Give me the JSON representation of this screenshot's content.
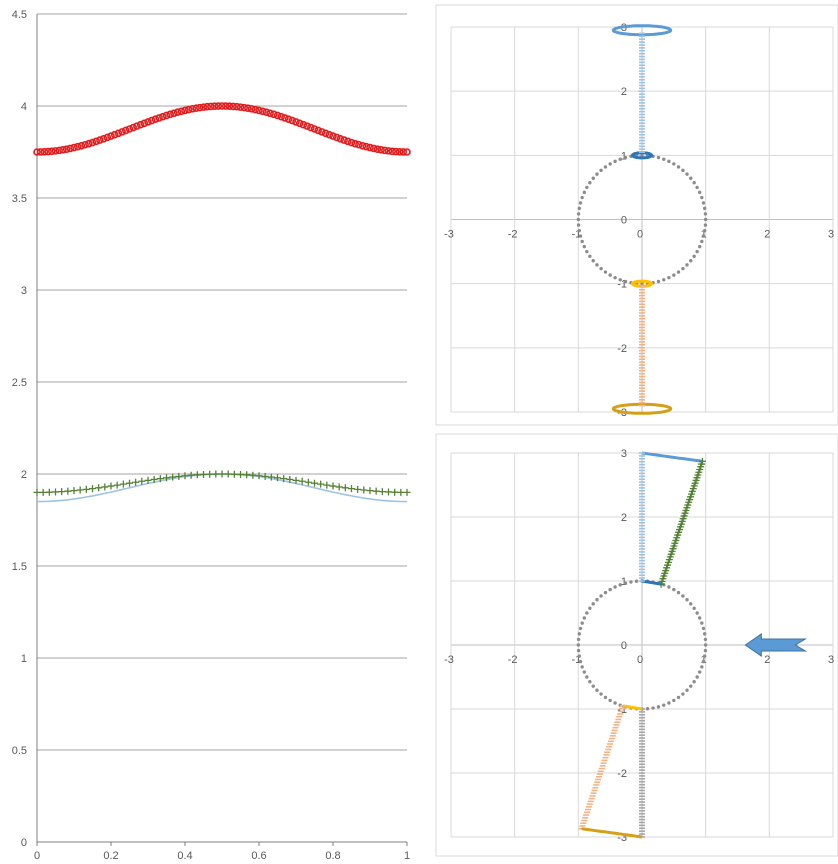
{
  "colors": {
    "red": "#e31a1c",
    "blue": "#5b9bd5",
    "blue_dark": "#2e75b6",
    "light_blue": "#9dc3e6",
    "green": "#548235",
    "gray": "#8c8c8c",
    "gold": "#ffc000",
    "gold_dark": "#d4a017",
    "salmon": "#f4b183",
    "grid": "#d9d9d9",
    "grid_dark": "#a6a6a6"
  },
  "chart_data": [
    {
      "id": "left",
      "type": "scatter",
      "xlim": [
        0,
        1
      ],
      "ylim": [
        0,
        4.5
      ],
      "x_ticks": [
        "0",
        "0.2",
        "0.4",
        "0.6",
        "0.8",
        "1"
      ],
      "y_ticks": [
        "0",
        "0.5",
        "1",
        "1.5",
        "2",
        "2.5",
        "3",
        "3.5",
        "4",
        "4.5"
      ],
      "grid": "horizontal",
      "legend": "none",
      "series": [
        {
          "marker": "circle",
          "color": "red",
          "shape": "cosine",
          "y_min": 3.75,
          "y_max": 4.0
        },
        {
          "marker": "line",
          "color": "light_blue",
          "shape": "cosine",
          "y_min": 1.85,
          "y_max": 2.0
        },
        {
          "marker": "plus",
          "color": "green",
          "shape": "cosine",
          "y_min": 1.9,
          "y_max": 2.0
        }
      ]
    },
    {
      "id": "top-right",
      "type": "scatter",
      "xlim": [
        -3,
        3
      ],
      "ylim": [
        -3,
        3
      ],
      "x_ticks": [
        "-3",
        "-2",
        "-1",
        "0",
        "1",
        "2",
        "3"
      ],
      "y_ticks": [
        "-3",
        "-2",
        "-1",
        "0",
        "1",
        "2",
        "3"
      ],
      "grid": "both",
      "legend": "none",
      "series": [
        {
          "marker": "dot",
          "color": "gray",
          "shape": "circle",
          "center": [
            0,
            0
          ],
          "r": 1
        },
        {
          "marker": "ring",
          "color": "blue",
          "shape": "ellipse",
          "center": [
            0,
            2.95
          ],
          "rx": 0.45,
          "ry": 0.07
        },
        {
          "marker": "ring",
          "color": "blue_dark",
          "shape": "ellipse",
          "center": [
            0,
            1.0
          ],
          "rx": 0.15,
          "ry": 0.04
        },
        {
          "marker": "ring",
          "color": "gold",
          "shape": "ellipse",
          "center": [
            0,
            -1.0
          ],
          "rx": 0.15,
          "ry": 0.04
        },
        {
          "marker": "ring",
          "color": "gold_dark",
          "shape": "ellipse",
          "center": [
            0,
            -2.95
          ],
          "rx": 0.45,
          "ry": 0.07
        },
        {
          "marker": "dash",
          "color": "light_blue",
          "shape": "segment",
          "from": [
            0,
            1.05
          ],
          "to": [
            0,
            2.9
          ]
        },
        {
          "marker": "dash",
          "color": "salmon",
          "shape": "segment",
          "from": [
            0,
            -1.05
          ],
          "to": [
            0,
            -2.9
          ]
        }
      ]
    },
    {
      "id": "bottom-right",
      "type": "scatter",
      "xlim": [
        -3,
        3
      ],
      "ylim": [
        -3,
        3
      ],
      "x_ticks": [
        "-3",
        "-2",
        "-1",
        "0",
        "1",
        "2",
        "3"
      ],
      "y_ticks": [
        "-3",
        "-2",
        "-1",
        "0",
        "1",
        "2",
        "3"
      ],
      "grid": "both",
      "legend": "none",
      "series": [
        {
          "marker": "dot",
          "color": "gray",
          "shape": "circle",
          "center": [
            0,
            0
          ],
          "r": 1
        },
        {
          "marker": "line",
          "color": "blue",
          "shape": "segment",
          "from": [
            0,
            3.0
          ],
          "to": [
            0.95,
            2.87
          ]
        },
        {
          "marker": "plus",
          "color": "green",
          "shape": "segment",
          "from": [
            0.95,
            2.87
          ],
          "to": [
            0.3,
            0.95
          ]
        },
        {
          "marker": "line",
          "color": "blue_dark",
          "shape": "segment",
          "from": [
            0,
            1.0
          ],
          "to": [
            0.3,
            0.95
          ]
        },
        {
          "marker": "dash",
          "color": "light_blue",
          "shape": "segment",
          "from": [
            0,
            1.0
          ],
          "to": [
            0,
            3.0
          ]
        },
        {
          "marker": "dash",
          "color": "grid_dark",
          "shape": "segment",
          "from": [
            0,
            -1.0
          ],
          "to": [
            0,
            -3.0
          ]
        },
        {
          "marker": "line",
          "color": "gold",
          "shape": "segment",
          "from": [
            -0.3,
            -0.95
          ],
          "to": [
            0,
            -1.0
          ]
        },
        {
          "marker": "dash",
          "color": "salmon",
          "shape": "segment",
          "from": [
            -0.3,
            -0.95
          ],
          "to": [
            -0.95,
            -2.87
          ]
        },
        {
          "marker": "line",
          "color": "gold_dark",
          "shape": "segment",
          "from": [
            -0.95,
            -2.87
          ],
          "to": [
            0,
            -3.0
          ]
        }
      ],
      "annotation": {
        "shape": "arrow",
        "direction": "left",
        "color": "blue",
        "at": [
          2.0,
          0
        ]
      }
    }
  ]
}
